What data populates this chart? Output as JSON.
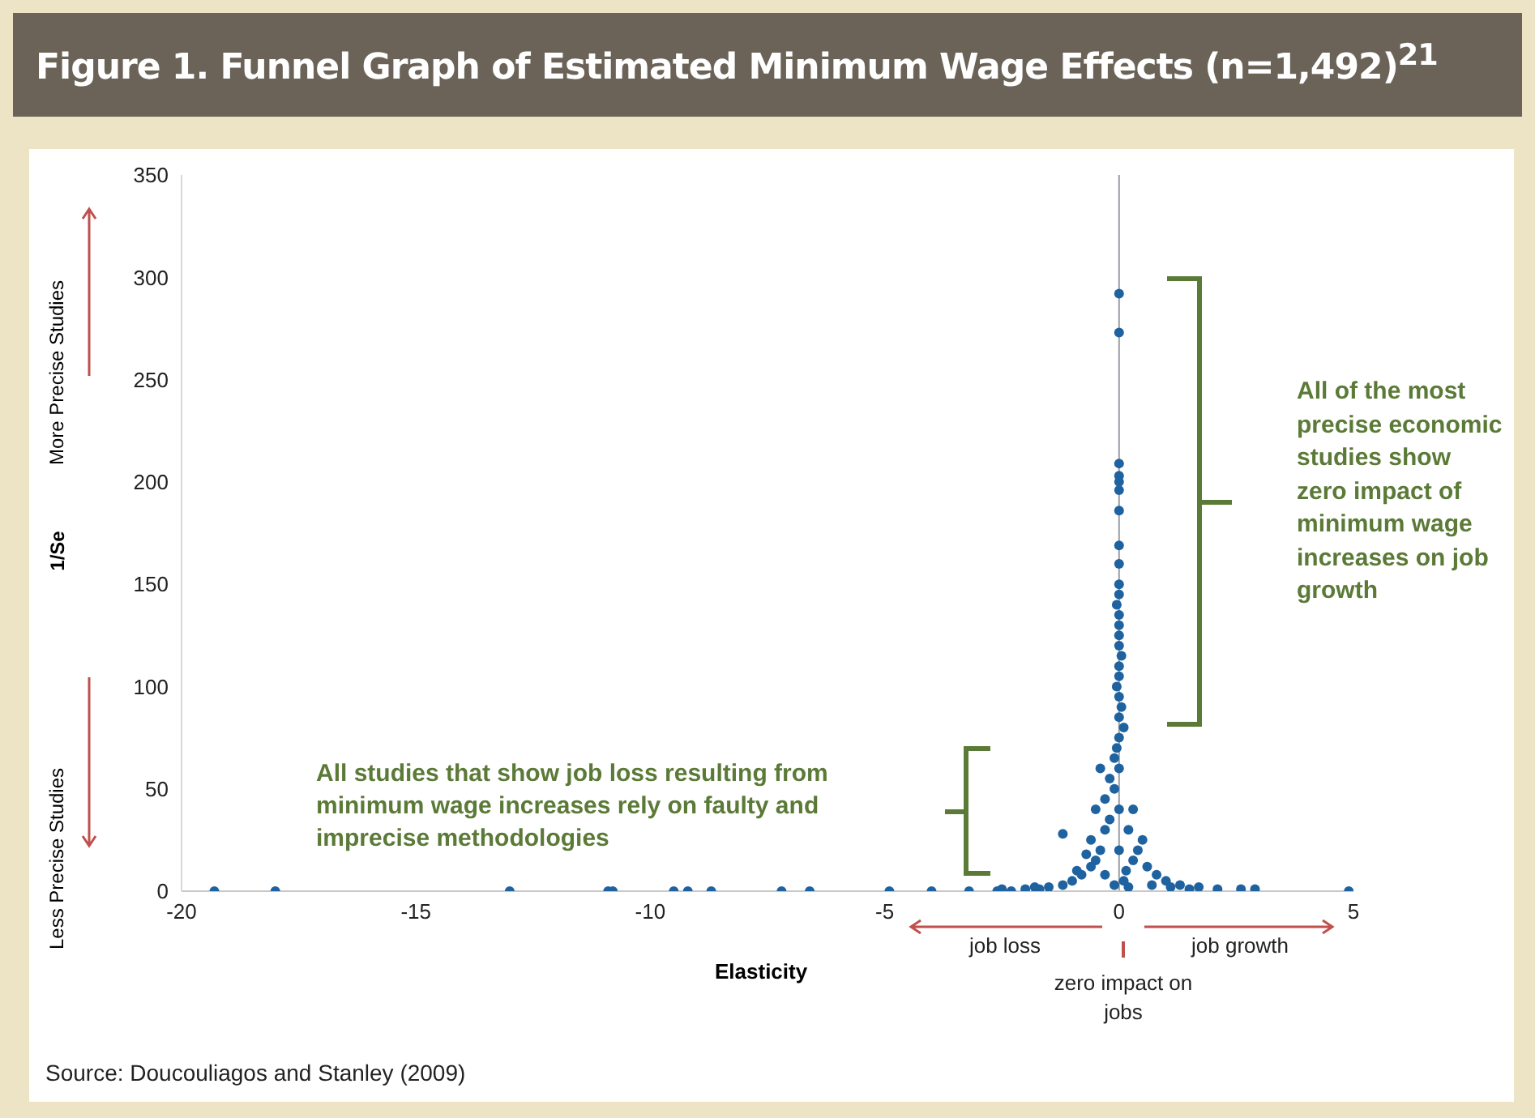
{
  "chart_data": {
    "type": "scatter",
    "title": "Figure 1. Funnel Graph of Estimated Minimum Wage Effects (n=1,492)$^{21}$",
    "xlabel": "Elasticity",
    "ylabel": "1/Se",
    "annotations": [
      "More Precise Studies",
      "Less Precise Studies",
      "All of the most precise economic studies show zero impact of minimum wage increases on job growth",
      "All studies that show job loss resulting from minimum wage increases rely on faulty and imprecise methodologies",
      "job loss",
      "job growth",
      "zero impact on jobs",
      "Source: Doucouliagos and Stanley (2009)"
    ],
    "series": [
      {
        "color": "#1f62a0",
        "x": [
          -19.3,
          -18,
          -13,
          -10.9,
          -10.8,
          -9.5,
          -9.2,
          -8.7,
          -7.2,
          -6.6,
          -4.9,
          -4,
          -3.2,
          -2.6,
          -2.3,
          -2,
          -1.7,
          -2.5,
          -1.8,
          -1.5,
          -1.2,
          -1,
          -0.8,
          -0.6,
          -0.5,
          -0.4,
          -0.6,
          -0.3,
          -0.2,
          -0.5,
          -0.3,
          -0.1,
          -0.2,
          -0.4,
          -1.2,
          -0.9,
          -0.7,
          -0.3,
          -0.1,
          -0.1,
          -0.05,
          0,
          0.1,
          0,
          0.05,
          0,
          -0.05,
          0,
          0,
          0.05,
          0,
          0,
          0,
          0,
          -0.05,
          0,
          0,
          0,
          0,
          0,
          0,
          0,
          0,
          0,
          0,
          0,
          0.3,
          0.2,
          0.4,
          0.6,
          0.8,
          1,
          1.3,
          1.7,
          2.1,
          0.5,
          0.3,
          0.15,
          0.1,
          0.2,
          0,
          0,
          0,
          0.7,
          1.1,
          1.5,
          2.6,
          2.9,
          4.9
        ],
        "values": [
          0,
          0,
          0,
          0,
          0,
          0,
          0,
          0,
          0,
          0,
          0,
          0,
          0,
          0,
          0,
          1,
          1,
          1,
          2,
          2,
          3,
          5,
          8,
          12,
          15,
          20,
          25,
          30,
          35,
          40,
          45,
          50,
          55,
          60,
          28,
          10,
          18,
          8,
          3,
          65,
          70,
          75,
          80,
          85,
          90,
          95,
          100,
          105,
          110,
          115,
          120,
          125,
          130,
          135,
          140,
          145,
          150,
          160,
          169,
          186,
          196,
          200,
          203,
          209,
          273,
          292,
          40,
          30,
          20,
          12,
          8,
          5,
          3,
          2,
          1,
          25,
          15,
          10,
          5,
          2,
          20,
          40,
          60,
          3,
          2,
          1,
          1,
          1,
          0
        ]
      }
    ],
    "xlim": [
      -20,
      5
    ],
    "xticks": [
      -20,
      -15,
      -10,
      -5,
      0,
      5
    ],
    "ylim": [
      0,
      350
    ],
    "yticks": [
      0,
      50,
      100,
      150,
      200,
      250,
      300,
      350
    ],
    "ref_lines": [
      {
        "axis": "x",
        "value": 0,
        "color": "#9a9ea6"
      }
    ],
    "marker": "circle",
    "grid": false,
    "legend": false
  }
}
